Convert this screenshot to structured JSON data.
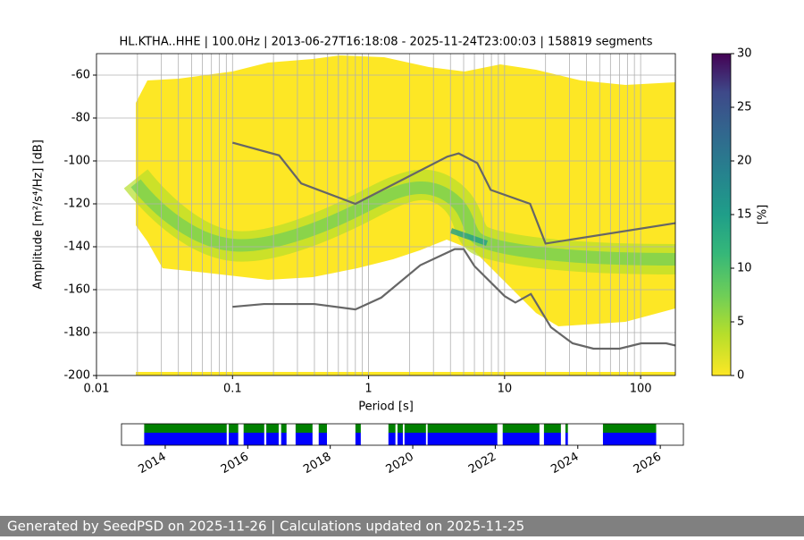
{
  "chart_data": [
    {
      "type": "line",
      "title": "HL.KTHA..HHE | 100.0Hz | 2013-06-27T16:18:08 - 2025-11-24T23:00:03 | 158819 segments",
      "xlabel": "Period [s]",
      "ylabel": "Amplitude [m²/s⁴/Hz] [dB]",
      "xscale": "log",
      "xlim": [
        0.01,
        180
      ],
      "xticks": [
        0.01,
        0.1,
        1,
        10,
        100
      ],
      "ylim": [
        -200,
        -50
      ],
      "yticks": [
        -200,
        -180,
        -160,
        -140,
        -120,
        -100,
        -80,
        -60
      ],
      "grid": true,
      "series": [
        {
          "color": "#666666",
          "x": [
            0.1,
            0.22,
            0.32,
            0.8,
            3.8,
            4.6,
            6.3,
            7.9,
            15.4,
            20,
            180
          ],
          "values": [
            -91.5,
            -97.4,
            -110.5,
            -120,
            -98,
            -96.5,
            -101,
            -113.5,
            -120,
            -138.5,
            -129
          ]
        },
        {
          "color": "#666666",
          "x": [
            0.1,
            0.17,
            0.4,
            0.8,
            1.24,
            2.4,
            4.3,
            5,
            6,
            10,
            12,
            15.6,
            21.9,
            31.6,
            45,
            70,
            101,
            154,
            180
          ],
          "values": [
            -168,
            -166.7,
            -166.7,
            -169.2,
            -163.7,
            -148.6,
            -141.1,
            -141.1,
            -149,
            -163,
            -166,
            -162,
            -177.5,
            -185,
            -187.5,
            -187.5,
            -185,
            -185,
            -186
          ]
        }
      ]
    },
    {
      "type": "colorbar",
      "label": "[%]",
      "colormap": "viridis",
      "ylim": [
        0,
        30
      ],
      "yticks": [
        0,
        5,
        10,
        15,
        20,
        25,
        30
      ]
    },
    {
      "type": "timeline",
      "xlim": [
        2012.94,
        2026.56
      ],
      "xticks": [
        2014,
        2016,
        2018,
        2020,
        2022,
        2024,
        2026
      ],
      "series": [
        {
          "color": "#008000",
          "segments": [
            [
              2013.49,
              2015.49
            ],
            [
              2015.54,
              2015.77
            ],
            [
              2015.9,
              2016.4
            ],
            [
              2016.45,
              2016.75
            ],
            [
              2016.81,
              2016.94
            ],
            [
              2017.16,
              2017.57
            ],
            [
              2017.72,
              2017.92
            ],
            [
              2018.61,
              2018.74
            ],
            [
              2019.41,
              2019.58
            ],
            [
              2019.63,
              2019.76
            ],
            [
              2019.8,
              2020.32
            ],
            [
              2020.36,
              2022.05
            ],
            [
              2022.18,
              2023.07
            ],
            [
              2023.18,
              2023.59
            ],
            [
              2023.7,
              2023.76
            ],
            [
              2024.61,
              2025.9
            ]
          ]
        },
        {
          "color": "#0000ff",
          "segments": [
            [
              2013.49,
              2015.49
            ],
            [
              2015.54,
              2015.77
            ],
            [
              2015.9,
              2016.4
            ],
            [
              2016.45,
              2016.75
            ],
            [
              2016.81,
              2016.94
            ],
            [
              2017.16,
              2017.57
            ],
            [
              2017.72,
              2017.92
            ],
            [
              2018.61,
              2018.74
            ],
            [
              2019.41,
              2019.58
            ],
            [
              2019.63,
              2019.76
            ],
            [
              2019.8,
              2020.32
            ],
            [
              2020.36,
              2022.05
            ],
            [
              2022.18,
              2023.07
            ],
            [
              2023.18,
              2023.59
            ],
            [
              2023.7,
              2023.76
            ],
            [
              2024.61,
              2025.9
            ]
          ]
        }
      ]
    }
  ],
  "footer": "Generated by SeedPSD on 2025-11-26 | Calculations updated on 2025-11-25"
}
